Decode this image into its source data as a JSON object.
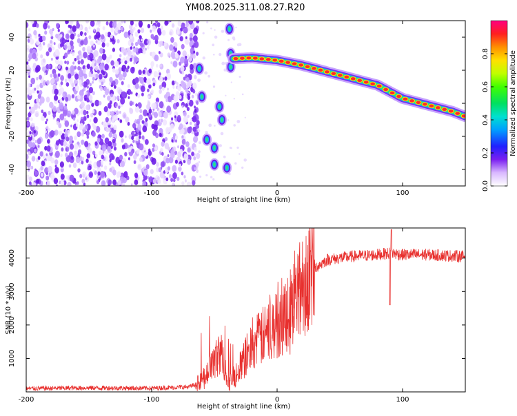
{
  "title": "YM08.2025.311.08.27.R20",
  "colors": {
    "background": "#ffffff",
    "snr_line": "#e8302e",
    "noise": "#8a3ff0",
    "track_core": "#ff1a2a"
  },
  "chart_data": [
    {
      "type": "heatmap",
      "title": "YM08.2025.311.08.27.R20",
      "xlabel": "Height of straight line (km)",
      "ylabel": "Frequency (Hz)",
      "xlim": [
        -200,
        150
      ],
      "ylim": [
        -50,
        50
      ],
      "xticks": [
        -200,
        -100,
        0,
        100
      ],
      "yticks": [
        40,
        20,
        0,
        -20,
        -40
      ],
      "colorbar": {
        "label": "Normalized spectral amplitude",
        "range": [
          0.0,
          1.0
        ],
        "ticks": [
          0.0,
          0.2,
          0.4,
          0.6,
          0.8
        ],
        "tick_labels": [
          "0.0",
          "0.2",
          "0.4",
          "0.6",
          "0.8"
        ]
      },
      "track": {
        "description_values": "frequency (Hz) of dominant spectral line vs height (km)",
        "x": [
          -35,
          -20,
          0,
          20,
          40,
          60,
          80,
          90,
          100,
          120,
          140,
          150
        ],
        "y": [
          27,
          27.5,
          26,
          23,
          19,
          15,
          11,
          7,
          3,
          -1,
          -5,
          -8
        ]
      },
      "noise_region_x": [
        -200,
        -63
      ],
      "blobs": [
        {
          "x": -62,
          "y": 21
        },
        {
          "x": -60,
          "y": 4
        },
        {
          "x": -56,
          "y": -22
        },
        {
          "x": -50,
          "y": -27
        },
        {
          "x": -50,
          "y": -37
        },
        {
          "x": -46,
          "y": -2
        },
        {
          "x": -44,
          "y": -10
        },
        {
          "x": -40,
          "y": -39
        },
        {
          "x": -38,
          "y": 45
        },
        {
          "x": -37,
          "y": 30
        },
        {
          "x": -37,
          "y": 22
        }
      ]
    },
    {
      "type": "line",
      "xlabel": "Height of straight line (km)",
      "ylabel": "SNR (10 * v/v)",
      "xlim": [
        -200,
        150
      ],
      "ylim": [
        0,
        4900
      ],
      "xticks": [
        -200,
        -100,
        0,
        100
      ],
      "yticks": [
        1000,
        2000,
        3000,
        4000
      ],
      "series": [
        {
          "name": "SNR",
          "x": [
            -200,
            -150,
            -100,
            -70,
            -60,
            -52,
            -45,
            -38,
            -30,
            -20,
            -10,
            0,
            10,
            20,
            30,
            40,
            60,
            80,
            90,
            100,
            120,
            150
          ],
          "y": [
            100,
            120,
            110,
            150,
            300,
            800,
            1200,
            250,
            700,
            1400,
            1700,
            2000,
            2500,
            3200,
            3700,
            3950,
            4050,
            4100,
            4150,
            4100,
            4100,
            4050
          ]
        }
      ]
    }
  ]
}
